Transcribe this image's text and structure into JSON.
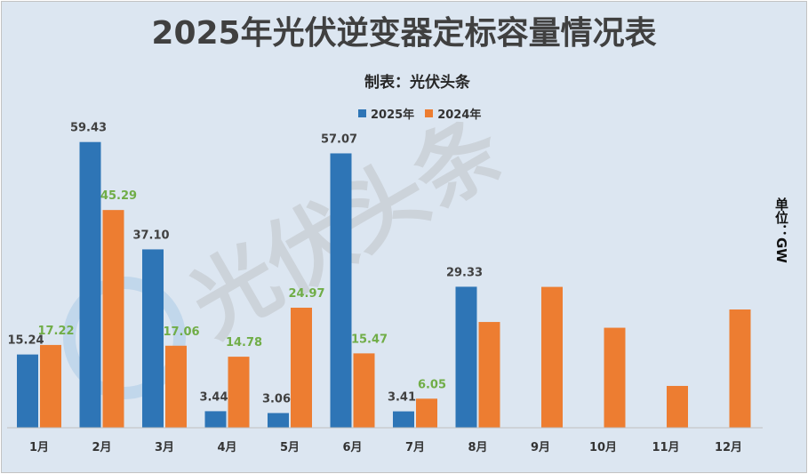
{
  "colors": {
    "y2025": "#2e75b6",
    "y2024": "#ed7d31",
    "label2025": "#404040",
    "label2024": "#70ad47",
    "axis": "#bfbfbf"
  },
  "header": {
    "title": "2025年光伏逆变器定标容量情况表",
    "subtitle": "制表：光伏头条"
  },
  "unit_label": "单位：GW",
  "watermark": "光伏头条",
  "chart_data": {
    "type": "bar",
    "title": "2025年光伏逆变器定标容量情况表",
    "categories": [
      "1月",
      "2月",
      "3月",
      "4月",
      "5月",
      "6月",
      "7月",
      "8月",
      "9月",
      "10月",
      "11月",
      "12月"
    ],
    "series": [
      {
        "name": "2025年",
        "values": [
          15.24,
          59.43,
          37.1,
          3.44,
          3.06,
          57.07,
          3.41,
          29.33,
          null,
          null,
          null,
          null
        ],
        "labels": [
          "15.24",
          "59.43",
          "37.10",
          "3.44",
          "3.06",
          "57.07",
          "3.41",
          "29.33",
          "",
          "",
          "",
          ""
        ]
      },
      {
        "name": "2024年",
        "values": [
          17.22,
          45.29,
          17.06,
          14.78,
          24.97,
          15.47,
          6.05,
          22.0,
          29.3,
          20.8,
          8.7,
          24.6
        ],
        "labels": [
          "17.22",
          "45.29",
          "17.06",
          "14.78",
          "24.97",
          "15.47",
          "6.05",
          "",
          "",
          "",
          "",
          ""
        ]
      }
    ],
    "ylim": [
      0,
      64
    ],
    "ylabel": "单位：GW",
    "legend": "top-center"
  }
}
